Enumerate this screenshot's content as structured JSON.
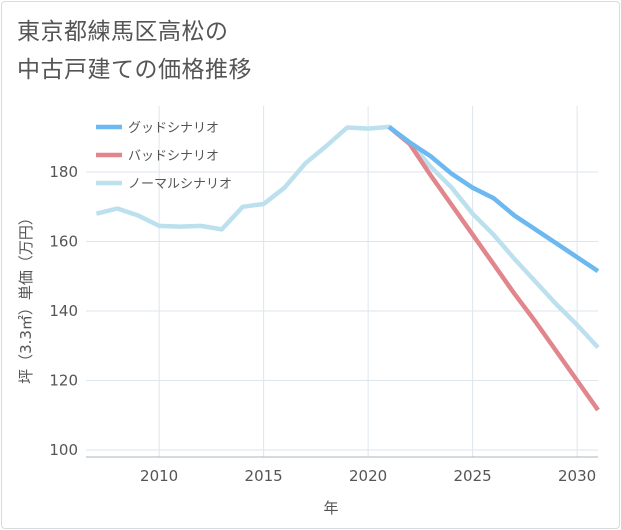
{
  "chart_data": {
    "type": "line",
    "title_lines": [
      "東京都練馬区高松の",
      "中古戸建ての価格推移"
    ],
    "xlabel": "年",
    "ylabel": "坪（3.3㎡）単価（万円）",
    "xlim": [
      2006.5,
      2031
    ],
    "ylim": [
      98,
      199
    ],
    "xticks": [
      2010,
      2015,
      2020,
      2025,
      2030
    ],
    "yticks": [
      100,
      120,
      140,
      160,
      180
    ],
    "grid": true,
    "legend_position": "top-left",
    "series": [
      {
        "name": "グッドシナリオ",
        "color": "#6cb8f0",
        "points": [
          [
            2021,
            193
          ],
          [
            2022,
            188.5
          ],
          [
            2023,
            184.5
          ],
          [
            2024,
            179.5
          ],
          [
            2025,
            175.5
          ],
          [
            2026,
            172.5
          ],
          [
            2027,
            167.5
          ],
          [
            2028,
            163.5
          ],
          [
            2029,
            159.5
          ],
          [
            2030,
            155.5
          ],
          [
            2031,
            151.5
          ]
        ]
      },
      {
        "name": "バッドシナリオ",
        "color": "#e0868c",
        "points": [
          [
            2021,
            193
          ],
          [
            2022,
            188
          ],
          [
            2023,
            179
          ],
          [
            2024,
            170.5
          ],
          [
            2025,
            162
          ],
          [
            2026,
            153.5
          ],
          [
            2027,
            145
          ],
          [
            2028,
            137
          ],
          [
            2029,
            128.5
          ],
          [
            2030,
            120
          ],
          [
            2031,
            111.5
          ]
        ]
      },
      {
        "name": "ノーマルシナリオ",
        "color": "#bde0ee",
        "points": [
          [
            2007,
            168
          ],
          [
            2008,
            169.5
          ],
          [
            2009,
            167.5
          ],
          [
            2010,
            164.5
          ],
          [
            2011,
            164.3
          ],
          [
            2012,
            164.5
          ],
          [
            2013,
            163.5
          ],
          [
            2014,
            170
          ],
          [
            2015,
            170.8
          ],
          [
            2016,
            175.5
          ],
          [
            2017,
            182.5
          ],
          [
            2018,
            187.5
          ],
          [
            2019,
            192.8
          ],
          [
            2020,
            192.5
          ],
          [
            2021,
            193
          ],
          [
            2022,
            188.5
          ],
          [
            2023,
            181.5
          ],
          [
            2024,
            175.5
          ],
          [
            2025,
            168
          ],
          [
            2026,
            162
          ],
          [
            2027,
            155
          ],
          [
            2028,
            148.5
          ],
          [
            2029,
            142
          ],
          [
            2030,
            136
          ],
          [
            2031,
            129.5
          ]
        ]
      }
    ]
  }
}
